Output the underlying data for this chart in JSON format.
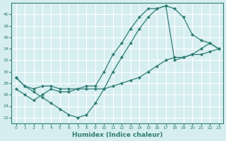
{
  "xlabel": "Humidex (Indice chaleur)",
  "ylabel": "",
  "bg_color": "#d6eef0",
  "grid_color": "#ffffff",
  "line_color": "#2e7d73",
  "xlim": [
    -0.5,
    23.5
  ],
  "ylim": [
    21,
    42
  ],
  "yticks": [
    22,
    24,
    26,
    28,
    30,
    32,
    34,
    36,
    38,
    40
  ],
  "xticks": [
    0,
    1,
    2,
    3,
    4,
    5,
    6,
    7,
    8,
    9,
    10,
    11,
    12,
    13,
    14,
    15,
    16,
    17,
    18,
    19,
    20,
    21,
    22,
    23
  ],
  "line1_x": [
    0,
    1,
    2,
    3,
    4,
    5,
    6,
    7,
    8,
    9,
    10,
    11,
    12,
    13,
    14,
    15,
    16,
    17,
    18,
    19,
    20,
    21,
    22,
    23
  ],
  "line1_y": [
    29,
    27.5,
    27,
    27.5,
    27.5,
    27,
    27,
    27,
    27.5,
    27.5,
    30,
    33,
    35,
    37.5,
    39.5,
    41,
    41,
    41.5,
    32,
    32.5,
    33,
    34,
    35,
    34
  ],
  "line2_x": [
    0,
    1,
    2,
    3,
    4,
    5,
    6,
    7,
    8,
    9,
    10,
    11,
    12,
    13,
    14,
    15,
    16,
    17,
    18,
    19,
    20,
    21,
    22,
    23
  ],
  "line2_y": [
    29,
    27.5,
    26.5,
    25.5,
    24.5,
    23.5,
    22.5,
    22,
    22.5,
    24.5,
    27,
    30,
    32.5,
    35,
    37.5,
    39.5,
    41,
    41.5,
    41,
    39.5,
    36.5,
    35.5,
    35,
    34
  ],
  "line3_x": [
    0,
    1,
    2,
    3,
    4,
    5,
    6,
    7,
    8,
    9,
    10,
    11,
    12,
    13,
    14,
    15,
    16,
    17,
    18,
    19,
    20,
    21,
    22,
    23
  ],
  "line3_y": [
    27,
    26,
    25,
    26,
    27,
    26.5,
    26.5,
    27,
    27,
    27,
    27,
    27.5,
    28,
    28.5,
    29,
    30,
    31,
    32,
    32.5,
    32.5,
    33,
    33,
    33.5,
    34
  ]
}
